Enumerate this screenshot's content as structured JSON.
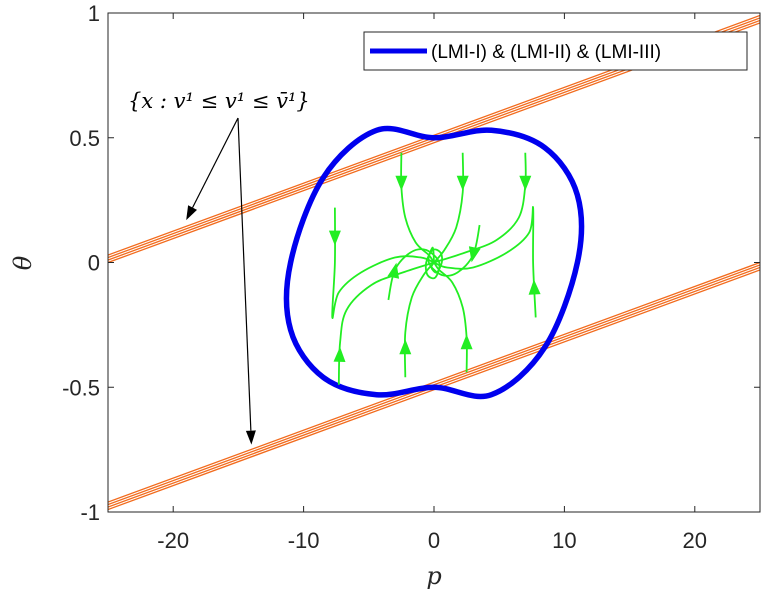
{
  "chart_data": {
    "type": "line",
    "xlabel": "p",
    "ylabel": "θ",
    "xlim": [
      -25,
      25
    ],
    "ylim": [
      -1,
      1
    ],
    "xticks": [
      -20,
      -10,
      0,
      10,
      20
    ],
    "xtick_labels": [
      "-20",
      "-10",
      "0",
      "10",
      "20"
    ],
    "yticks": [
      -1,
      -0.5,
      0,
      0.5,
      1
    ],
    "ytick_labels": [
      "-1",
      "-0.5",
      "0",
      "0.5",
      "1"
    ],
    "grid": false,
    "legend": {
      "position": "top-right",
      "entries": [
        {
          "label": "(LMI-I) & (LMI-II) & (LMI-III)",
          "color": "#0000ee"
        }
      ]
    },
    "annotation": {
      "text": "{x : v¹ ≤ v¹ ≤ v̄¹}",
      "arrow_targets": [
        [
          -19,
          0.17
        ],
        [
          -14,
          -0.73
        ]
      ]
    },
    "series": [
      {
        "label": "(LMI-I) & (LMI-II) & (LMI-III)",
        "kind": "ellipse",
        "color": "#0000ee",
        "points": [
          [
            4.4,
            0.53
          ],
          [
            8.5,
            0.46
          ],
          [
            11.0,
            0.27
          ],
          [
            11.0,
            0.0
          ],
          [
            8.5,
            -0.34
          ],
          [
            4.4,
            -0.53
          ],
          [
            0.0,
            -0.5
          ],
          [
            -4.4,
            -0.53
          ],
          [
            -8.5,
            -0.46
          ],
          [
            -11.0,
            -0.27
          ],
          [
            -11.0,
            0.0
          ],
          [
            -8.5,
            0.34
          ],
          [
            -4.4,
            0.53
          ],
          [
            0.0,
            0.5
          ]
        ]
      },
      {
        "kind": "constraint-band",
        "color": "#f26b1d",
        "upper_band": {
          "line_count": 4,
          "slope_per_unit_p": 0.0192,
          "y_at_p0": [
            0.48,
            0.49,
            0.5,
            0.51
          ]
        },
        "lower_band": {
          "line_count": 4,
          "slope_per_unit_p": 0.0192,
          "y_at_p0": [
            -0.51,
            -0.5,
            -0.49,
            -0.48
          ]
        }
      },
      {
        "kind": "trajectories",
        "color": "#22ee22",
        "paths": [
          [
            [
              -2.5,
              0.44
            ],
            [
              -2.5,
              0.3
            ],
            [
              -2.2,
              0.18
            ],
            [
              -1.4,
              0.08
            ],
            [
              -0.4,
              0.03
            ],
            [
              0.0,
              0.0
            ]
          ],
          [
            [
              2.2,
              0.44
            ],
            [
              2.2,
              0.28
            ],
            [
              1.7,
              0.14
            ],
            [
              0.8,
              0.05
            ],
            [
              0.0,
              0.0
            ]
          ],
          [
            [
              7.0,
              0.44
            ],
            [
              7.0,
              0.31
            ],
            [
              6.5,
              0.18
            ],
            [
              4.8,
              0.09
            ],
            [
              2.4,
              0.04
            ],
            [
              0.0,
              0.0
            ]
          ],
          [
            [
              -7.3,
              -0.49
            ],
            [
              -7.2,
              -0.32
            ],
            [
              -6.7,
              -0.19
            ],
            [
              -4.8,
              -0.09
            ],
            [
              -2.4,
              -0.04
            ],
            [
              0.0,
              0.0
            ]
          ],
          [
            [
              -2.2,
              -0.46
            ],
            [
              -2.2,
              -0.28
            ],
            [
              -1.7,
              -0.14
            ],
            [
              -0.8,
              -0.05
            ],
            [
              0.0,
              0.0
            ]
          ],
          [
            [
              2.5,
              -0.44
            ],
            [
              2.5,
              -0.3
            ],
            [
              2.2,
              -0.18
            ],
            [
              1.4,
              -0.08
            ],
            [
              0.4,
              -0.03
            ],
            [
              0.0,
              0.0
            ]
          ],
          [
            [
              -7.6,
              0.22
            ],
            [
              -7.6,
              0.0
            ],
            [
              -7.8,
              -0.22
            ],
            [
              -7.3,
              -0.12
            ],
            [
              -5.6,
              -0.04
            ],
            [
              -3.0,
              0.02
            ],
            [
              -1.0,
              0.02
            ],
            [
              0.0,
              0.0
            ]
          ],
          [
            [
              7.8,
              -0.22
            ],
            [
              7.6,
              0.0
            ],
            [
              7.6,
              0.22
            ],
            [
              7.3,
              0.12
            ],
            [
              5.6,
              0.04
            ],
            [
              3.0,
              -0.02
            ],
            [
              1.0,
              -0.02
            ],
            [
              0.0,
              0.0
            ]
          ],
          [
            [
              -3.5,
              -0.15
            ],
            [
              -3.0,
              -0.03
            ],
            [
              -1.8,
              0.04
            ],
            [
              -0.6,
              0.05
            ],
            [
              0.4,
              0.0
            ],
            [
              0.1,
              -0.06
            ],
            [
              -0.5,
              -0.05
            ],
            [
              -0.6,
              0.0
            ],
            [
              -0.1,
              0.05
            ],
            [
              0.5,
              0.04
            ],
            [
              0.6,
              0.0
            ],
            [
              0.2,
              -0.04
            ],
            [
              -0.2,
              -0.02
            ],
            [
              0.0,
              0.0
            ]
          ],
          [
            [
              3.5,
              0.15
            ],
            [
              3.0,
              0.03
            ],
            [
              1.8,
              -0.04
            ],
            [
              0.6,
              -0.05
            ],
            [
              -0.4,
              0.0
            ],
            [
              -0.1,
              0.06
            ],
            [
              0.0,
              0.0
            ]
          ]
        ]
      }
    ]
  }
}
